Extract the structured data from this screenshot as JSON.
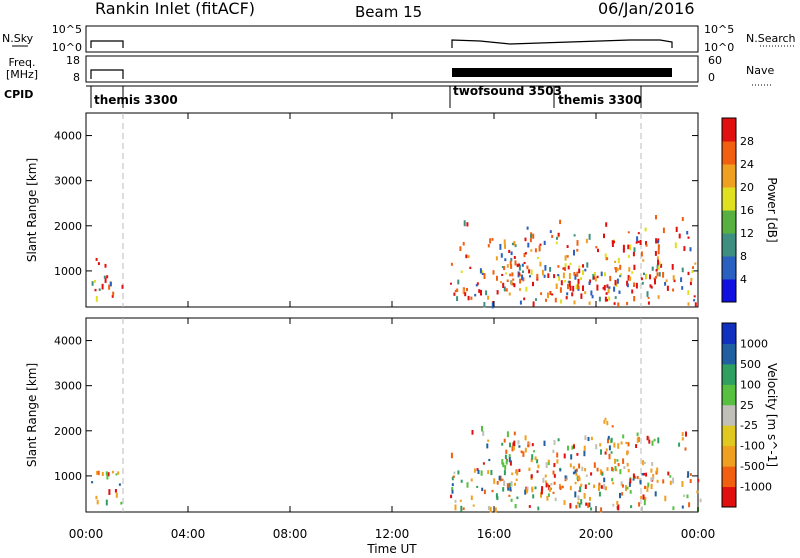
{
  "header": {
    "station": "Rankin Inlet (fitACF)",
    "beam": "Beam 15",
    "date": "06/Jan/2016"
  },
  "panels": {
    "nsky": {
      "label": "N.Sky",
      "ticks": [
        "10^5",
        "10^0"
      ],
      "right_label": "N.Search",
      "right_ticks": [
        "10^5",
        "10^0"
      ]
    },
    "freq": {
      "label_line1": "Freq.",
      "label_line2": "[MHz]",
      "ticks": [
        "18",
        "8"
      ],
      "right_label": "Nave",
      "right_ticks": [
        "60",
        "0"
      ]
    },
    "cpid": {
      "label": "CPID",
      "programs": [
        "themis 3300",
        "twofsound 3503",
        "themis 3300"
      ]
    }
  },
  "chart_data": [
    {
      "type": "heatmap",
      "name": "power",
      "ylabel": "Slant Range [km]",
      "yticks": [
        "1000",
        "2000",
        "3000",
        "4000"
      ],
      "ylim": [
        200,
        4500
      ],
      "colorbar_label": "Power [dB]",
      "colorbar_ticks": [
        "4",
        "8",
        "12",
        "16",
        "20",
        "24",
        "28"
      ],
      "colorbar_colors": [
        "#1010e0",
        "#2a60c0",
        "#3f8f80",
        "#58b040",
        "#e0e020",
        "#f0a020",
        "#f06010",
        "#e01010"
      ]
    },
    {
      "type": "heatmap",
      "name": "velocity",
      "ylabel": "Slant Range [km]",
      "yticks": [
        "1000",
        "2000",
        "3000",
        "4000"
      ],
      "ylim": [
        200,
        4500
      ],
      "colorbar_label": "Velocity [m s^-1]",
      "colorbar_ticks": [
        "-1000",
        "-500",
        "-100",
        "-25",
        "25",
        "100",
        "500",
        "1000"
      ],
      "colorbar_colors": [
        "#e01010",
        "#f06010",
        "#f0a020",
        "#e0c820",
        "#c0c0b8",
        "#58c040",
        "#30a060",
        "#2060a0",
        "#1030c0"
      ]
    }
  ],
  "xaxis": {
    "label": "Time UT",
    "ticks": [
      "00:00",
      "04:00",
      "08:00",
      "12:00",
      "16:00",
      "20:00",
      "00:00"
    ]
  }
}
